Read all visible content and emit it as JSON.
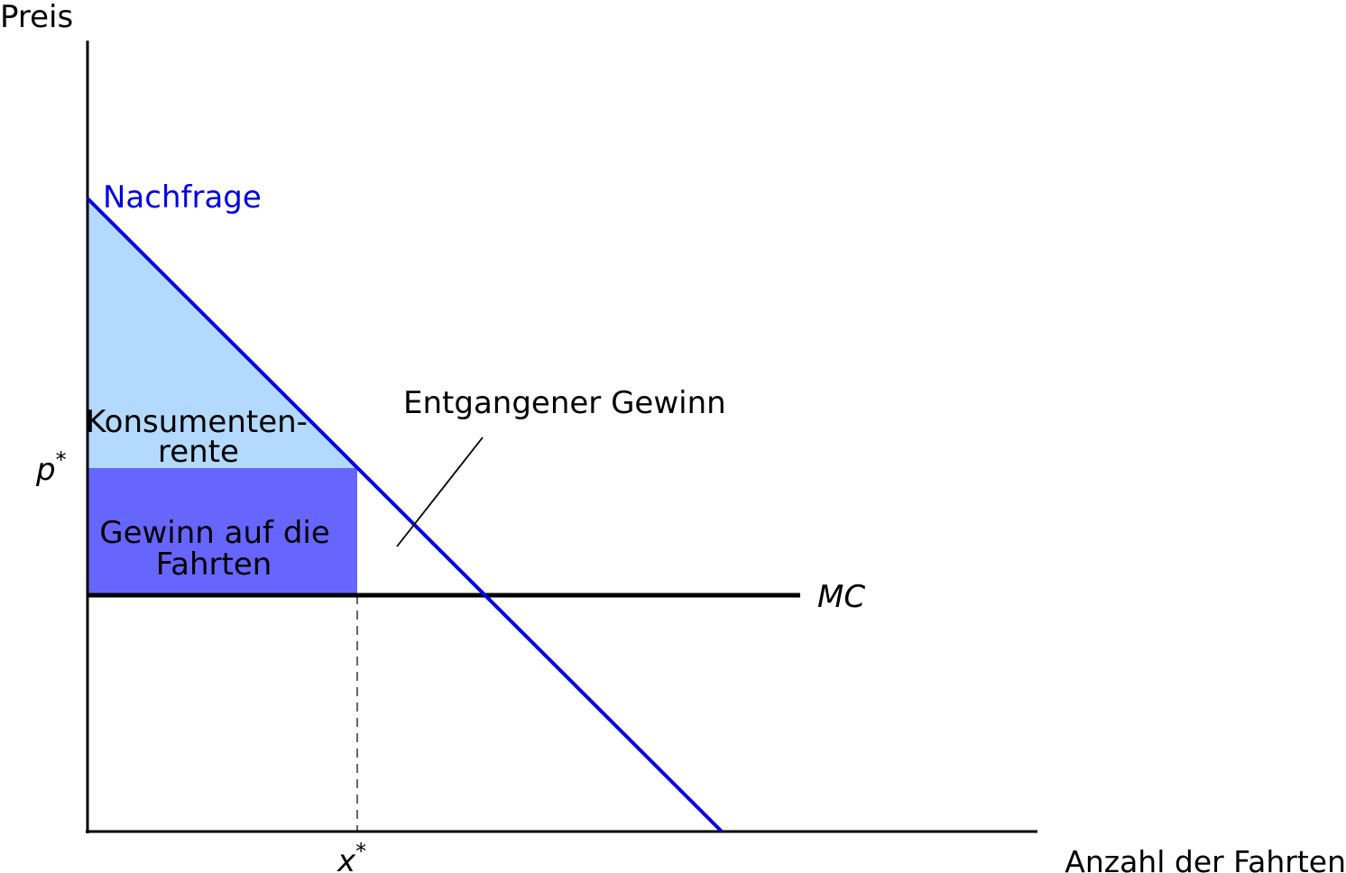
{
  "axes": {
    "y_label": "Preis",
    "x_label": "Anzahl der Fahrten"
  },
  "curves": {
    "demand": "Nachfrage",
    "mc": "MC"
  },
  "markers": {
    "p": {
      "base": "p",
      "sup": "*"
    },
    "x": {
      "base": "x",
      "sup": "*"
    }
  },
  "areas": {
    "consumer_surplus": [
      "Konsumenten-",
      "rente"
    ],
    "profit": [
      "Gewinn auf die",
      "Fahrten"
    ]
  },
  "annotation": "Entgangener Gewinn"
}
